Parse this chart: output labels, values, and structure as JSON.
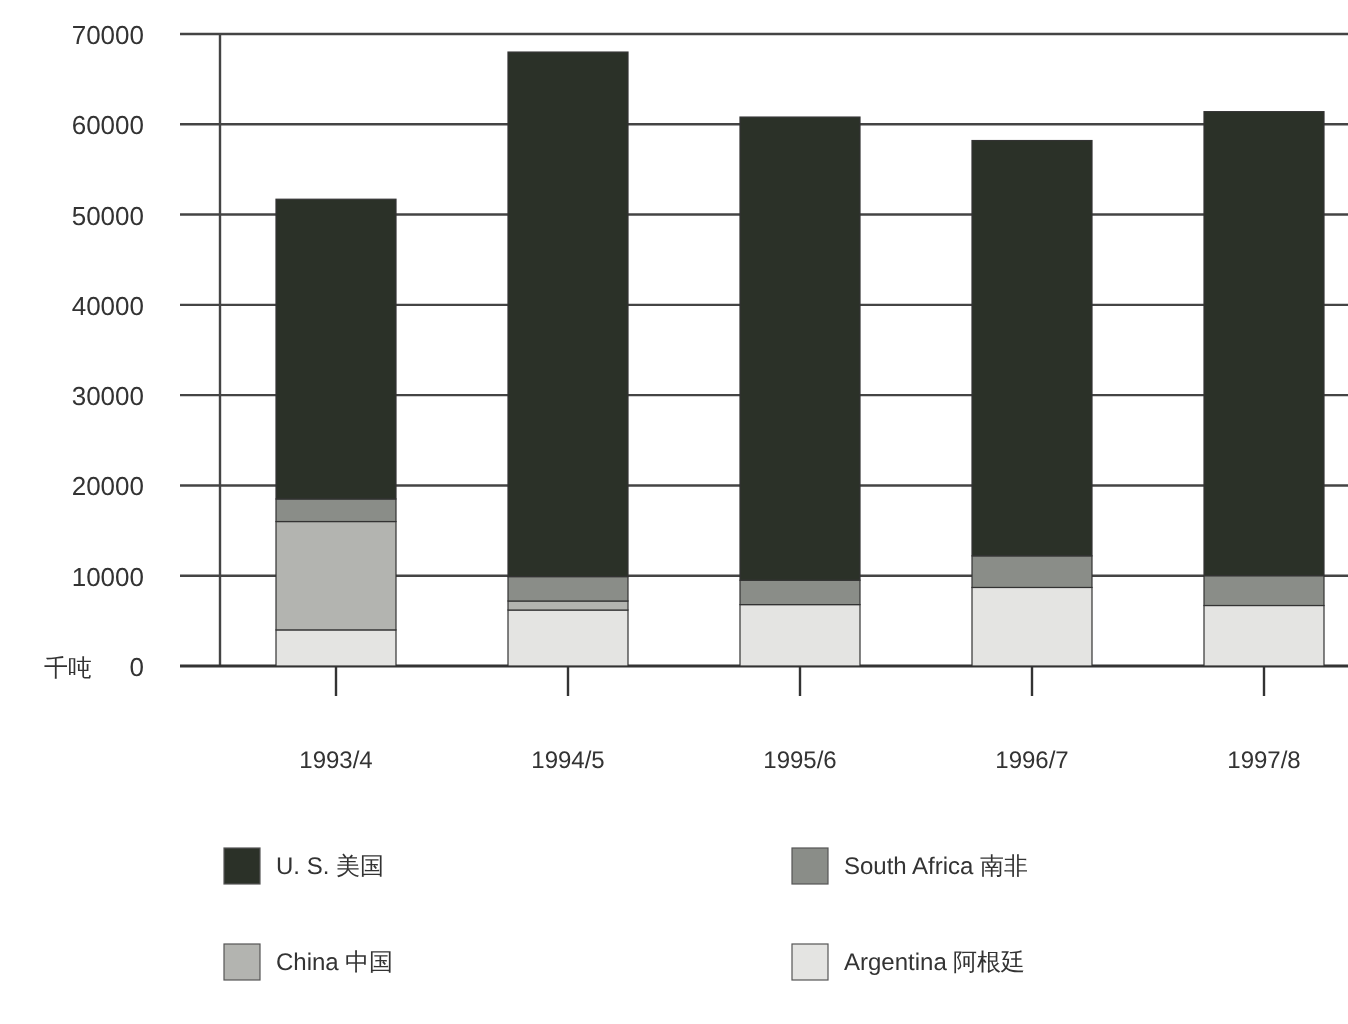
{
  "chart_data": {
    "type": "bar",
    "stacked": true,
    "ylabel": "千吨",
    "categories": [
      "1993/4",
      "1994/5",
      "1995/6",
      "1996/7",
      "1997/8"
    ],
    "series": [
      {
        "name": "Argentina 阿根廷",
        "color": "#e4e4e2",
        "values": [
          4000,
          6200,
          6800,
          8700,
          6700
        ]
      },
      {
        "name": "China 中国",
        "color": "#b3b4b0",
        "values": [
          12000,
          1000,
          0,
          0,
          0
        ]
      },
      {
        "name": "South Africa 南非",
        "color": "#8a8d88",
        "values": [
          2500,
          2700,
          2700,
          3500,
          3300
        ]
      },
      {
        "name": "U. S. 美国",
        "color": "#2b3128",
        "values": [
          33200,
          58100,
          51300,
          46000,
          51400
        ]
      }
    ],
    "ylim": [
      0,
      70000
    ],
    "yticks": [
      0,
      10000,
      20000,
      30000,
      40000,
      50000,
      60000,
      70000
    ],
    "grid": "y",
    "legend": "bottom"
  }
}
